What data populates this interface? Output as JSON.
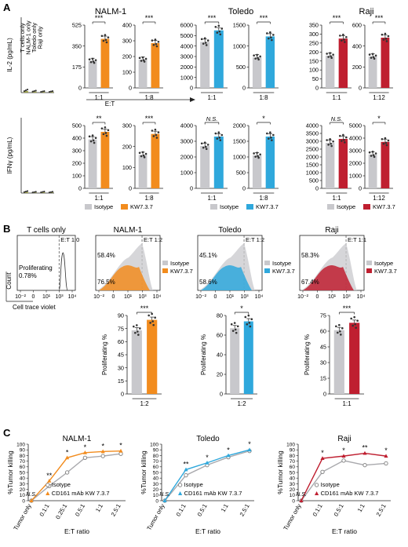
{
  "colors": {
    "isotype": "#c8c8cc",
    "nalm": "#f28c1e",
    "toledo": "#2fa8dc",
    "raji": "#bf1f30",
    "pointFill": "#333333",
    "text": "#1a1a1a"
  },
  "panel_letters": [
    "A",
    "B",
    "C"
  ],
  "panelA": {
    "cell_lines": [
      "NALM-1",
      "Toledo",
      "Raji"
    ],
    "et_label": "E:T",
    "control_labels": [
      "T cells only",
      "NALM-1 only",
      "Toledo only",
      "Raji only"
    ],
    "legend": {
      "isotype": "Isotype",
      "kw": "KW7.3.7"
    }
  },
  "panelB": {
    "facs_titles": [
      "T cells only",
      "NALM-1",
      "Toledo",
      "Raji"
    ],
    "et_labels": [
      "E:T 1:0",
      "E:T 1:2",
      "E:T 1:2",
      "E:T 1:1"
    ],
    "proliferating_label": "Proliferating",
    "proliferating_pct": "0.78%",
    "pct_top": [
      "58.4%",
      "45.1%",
      "58.3%"
    ],
    "pct_bottom": [
      "76.5%",
      "58.6%",
      "67.4%"
    ],
    "count_label": "Count",
    "ctv_label": "Cell trace violet",
    "legend": {
      "isotype": "Isotype",
      "kw": "KW7.3.7"
    }
  },
  "panelC": {
    "titles": [
      "NALM-1",
      "Toledo",
      "Raji"
    ],
    "ylabel": "%Tumor killing",
    "xlabel": "E:T ratio",
    "legend_isotype": "Isotype",
    "legend_kw": "CD161 mAb KW 7.3.7"
  },
  "chart_data": [
    {
      "type": "bar",
      "id": "il2-controls",
      "ylabel": "IL-2 (pg/mL)",
      "categories": [
        "T cells only",
        "NALM-1 only",
        "Toledo only",
        "Raji only"
      ],
      "values": [
        12,
        8,
        6,
        6
      ],
      "ylim": [
        0,
        600
      ]
    },
    {
      "type": "bar",
      "id": "il2-nalm-11",
      "categories": [
        "Isotype",
        "KW7.3.7"
      ],
      "values": [
        225,
        410
      ],
      "ylim": [
        0,
        525
      ],
      "yticks": [
        0,
        175,
        350,
        525
      ],
      "significance": "***",
      "xlabel": "1:1"
    },
    {
      "type": "bar",
      "id": "il2-nalm-18",
      "categories": [
        "Isotype",
        "KW7.3.7"
      ],
      "values": [
        180,
        285
      ],
      "ylim": [
        0,
        400
      ],
      "yticks": [
        0,
        100,
        200,
        300,
        400
      ],
      "significance": "***",
      "xlabel": "1:8"
    },
    {
      "type": "bar",
      "id": "il2-toledo-11",
      "categories": [
        "Isotype",
        "KW7.3.7"
      ],
      "values": [
        4400,
        5500
      ],
      "ylim": [
        0,
        6000
      ],
      "yticks": [
        0,
        1000,
        2000,
        3000,
        4000,
        5000,
        6000
      ],
      "significance": "***",
      "xlabel": "1:1"
    },
    {
      "type": "bar",
      "id": "il2-toledo-18",
      "categories": [
        "Isotype",
        "KW7.3.7"
      ],
      "values": [
        730,
        1230
      ],
      "ylim": [
        0,
        1500
      ],
      "yticks": [
        0,
        500,
        1000,
        1500
      ],
      "significance": "***",
      "xlabel": "1:8"
    },
    {
      "type": "bar",
      "id": "il2-raji-11",
      "categories": [
        "Isotype",
        "KW7.3.7"
      ],
      "values": [
        180,
        275
      ],
      "ylim": [
        0,
        350
      ],
      "yticks": [
        0,
        50,
        100,
        150,
        200,
        250,
        300,
        350
      ],
      "significance": "***",
      "xlabel": "1:1"
    },
    {
      "type": "bar",
      "id": "il2-raji-112",
      "categories": [
        "Isotype",
        "KW7.3.7"
      ],
      "values": [
        300,
        480
      ],
      "ylim": [
        0,
        600
      ],
      "yticks": [
        0,
        200,
        400,
        600
      ],
      "significance": "***",
      "xlabel": "1:12"
    },
    {
      "type": "bar",
      "id": "ifn-controls",
      "ylabel": "IFNγ (pg/mL)",
      "categories": [
        "T cells only",
        "NALM-1 only",
        "Toledo only",
        "Raji only"
      ],
      "values": [
        8,
        5,
        6,
        5
      ],
      "ylim": [
        0,
        600
      ]
    },
    {
      "type": "bar",
      "id": "ifn-nalm-11",
      "categories": [
        "Isotype",
        "KW7.3.7"
      ],
      "values": [
        390,
        450
      ],
      "ylim": [
        0,
        500
      ],
      "yticks": [
        0,
        100,
        200,
        300,
        400,
        500
      ],
      "significance": "**",
      "xlabel": "1:1"
    },
    {
      "type": "bar",
      "id": "ifn-nalm-18",
      "categories": [
        "Isotype",
        "KW7.3.7"
      ],
      "values": [
        160,
        260
      ],
      "ylim": [
        0,
        300
      ],
      "yticks": [
        0,
        100,
        200,
        300
      ],
      "significance": "***",
      "xlabel": "1:8"
    },
    {
      "type": "bar",
      "id": "ifn-toledo-11",
      "categories": [
        "Isotype",
        "KW7.3.7"
      ],
      "values": [
        2700,
        3300
      ],
      "ylim": [
        0,
        4000
      ],
      "yticks": [
        0,
        1000,
        2000,
        3000,
        4000
      ],
      "significance": "N.S.",
      "xlabel": "1:1"
    },
    {
      "type": "bar",
      "id": "ifn-toledo-18",
      "categories": [
        "Isotype",
        "KW7.3.7"
      ],
      "values": [
        1050,
        1650
      ],
      "ylim": [
        0,
        2000
      ],
      "yticks": [
        0,
        500,
        1000,
        1500,
        2000
      ],
      "significance": "*",
      "xlabel": "1:8"
    },
    {
      "type": "bar",
      "id": "ifn-raji-11",
      "categories": [
        "Isotype",
        "KW7.3.7"
      ],
      "values": [
        2900,
        3150
      ],
      "ylim": [
        0,
        4000
      ],
      "yticks": [
        0,
        500,
        1000,
        1500,
        2000,
        2500,
        3000,
        3500,
        4000
      ],
      "significance": "N.S.",
      "xlabel": "1:1"
    },
    {
      "type": "bar",
      "id": "ifn-raji-112",
      "categories": [
        "Isotype",
        "KW7.3.7"
      ],
      "values": [
        2700,
        3700
      ],
      "ylim": [
        0,
        5000
      ],
      "yticks": [
        0,
        1000,
        2000,
        3000,
        4000,
        5000
      ],
      "significance": "*",
      "xlabel": "1:12"
    },
    {
      "type": "bar",
      "id": "prolif-nalm",
      "ylabel": "Proliferating %",
      "categories": [
        "Isotype",
        "KW7.3.7"
      ],
      "values": [
        73,
        85
      ],
      "ylim": [
        0,
        90
      ],
      "yticks": [
        0,
        15,
        30,
        45,
        60,
        75,
        90
      ],
      "significance": "***",
      "xlabel": "1:2"
    },
    {
      "type": "bar",
      "id": "prolif-toledo",
      "ylabel": "Proliferating %",
      "categories": [
        "Isotype",
        "KW7.3.7"
      ],
      "values": [
        67,
        74
      ],
      "ylim": [
        0,
        80
      ],
      "yticks": [
        0,
        20,
        40,
        60,
        80
      ],
      "significance": "*",
      "xlabel": "1:2"
    },
    {
      "type": "bar",
      "id": "prolif-raji",
      "ylabel": "Proliferating %",
      "categories": [
        "Isotype",
        "KW7.3.7"
      ],
      "values": [
        61,
        68
      ],
      "ylim": [
        0,
        75
      ],
      "yticks": [
        0,
        15,
        30,
        45,
        60,
        75
      ],
      "significance": "***",
      "xlabel": "1:1"
    },
    {
      "type": "line",
      "id": "kill-nalm",
      "title": "NALM-1",
      "ylabel": "%Tumor killing",
      "xlabel": "E:T ratio",
      "categories": [
        "Tumor only",
        "0.1:1",
        "0.25:1",
        "0.5:1",
        "1:1",
        "2.5:1"
      ],
      "ylim": [
        0,
        100
      ],
      "yticks": [
        0,
        10,
        20,
        30,
        40,
        50,
        60,
        70,
        80,
        90,
        100
      ],
      "series": [
        {
          "name": "Isotype",
          "values": [
            0,
            26,
            50,
            76,
            79,
            83
          ]
        },
        {
          "name": "CD161 mAb KW 7.3.7",
          "values": [
            0,
            35,
            76,
            85,
            87,
            88
          ]
        }
      ],
      "significance": [
        "N.S.",
        "**",
        "*",
        "*",
        "*",
        "*"
      ]
    },
    {
      "type": "line",
      "id": "kill-toledo",
      "title": "Toledo",
      "ylabel": "%Tumor killing",
      "xlabel": "E:T ratio",
      "categories": [
        "Tumor only",
        "0.1:1",
        "0.5:1",
        "1:1",
        "2.5:1"
      ],
      "ylim": [
        0,
        100
      ],
      "yticks": [
        0,
        10,
        20,
        30,
        40,
        50,
        60,
        70,
        80,
        90,
        100
      ],
      "series": [
        {
          "name": "Isotype",
          "values": [
            0,
            45,
            63,
            77,
            88
          ]
        },
        {
          "name": "CD161 mAb KW 7.3.7",
          "values": [
            0,
            55,
            67,
            80,
            90
          ]
        }
      ],
      "significance": [
        "N.S.",
        "**",
        "*",
        "*",
        "*"
      ]
    },
    {
      "type": "line",
      "id": "kill-raji",
      "title": "Raji",
      "ylabel": "%Tumor killing",
      "xlabel": "E:T ratio",
      "categories": [
        "Tumor only",
        "0.1:1",
        "0.5:1",
        "1:1",
        "2.5:1"
      ],
      "ylim": [
        0,
        100
      ],
      "yticks": [
        0,
        10,
        20,
        30,
        40,
        50,
        60,
        70,
        80,
        90,
        100
      ],
      "series": [
        {
          "name": "Isotype",
          "values": [
            0,
            51,
            71,
            63,
            66
          ]
        },
        {
          "name": "CD161 mAb KW 7.3.7",
          "values": [
            0,
            75,
            79,
            84,
            79
          ]
        }
      ],
      "significance": [
        "N.S.",
        "*",
        "*",
        "**",
        "*"
      ]
    }
  ]
}
